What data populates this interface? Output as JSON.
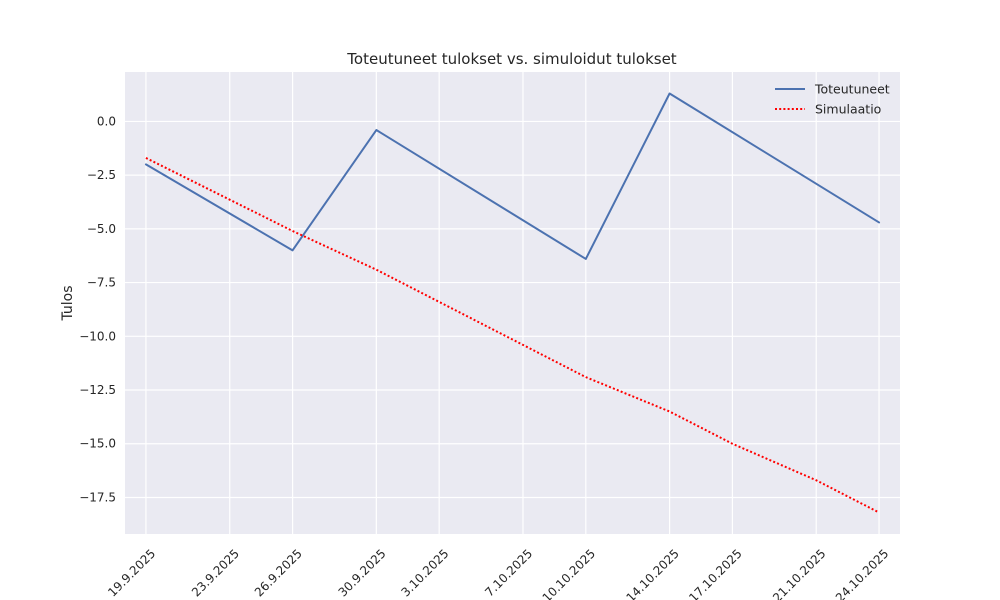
{
  "chart_data": {
    "type": "line",
    "title": "Toteutuneet tulokset vs. simuloidut tulokset",
    "xlabel": "",
    "ylabel": "Tulos",
    "x_ticks": [
      {
        "label": "19.9.2025",
        "date": "2025-09-19"
      },
      {
        "label": "23.9.2025",
        "date": "2025-09-23"
      },
      {
        "label": "26.9.2025",
        "date": "2025-09-26"
      },
      {
        "label": "30.9.2025",
        "date": "2025-09-30"
      },
      {
        "label": "3.10.2025",
        "date": "2025-10-03"
      },
      {
        "label": "7.10.2025",
        "date": "2025-10-07"
      },
      {
        "label": "10.10.2025",
        "date": "2025-10-10"
      },
      {
        "label": "14.10.2025",
        "date": "2025-10-14"
      },
      {
        "label": "17.10.2025",
        "date": "2025-10-17"
      },
      {
        "label": "21.10.2025",
        "date": "2025-10-21"
      },
      {
        "label": "24.10.2025",
        "date": "2025-10-24"
      }
    ],
    "y_ticks": [
      {
        "value": 0.0,
        "label": "0.0"
      },
      {
        "value": -2.5,
        "label": "−2.5"
      },
      {
        "value": -5.0,
        "label": "−5.0"
      },
      {
        "value": -7.5,
        "label": "−7.5"
      },
      {
        "value": -10.0,
        "label": "−10.0"
      },
      {
        "value": -12.5,
        "label": "−12.5"
      },
      {
        "value": -15.0,
        "label": "−15.0"
      },
      {
        "value": -17.5,
        "label": "−17.5"
      }
    ],
    "ylim": [
      -19.2,
      2.3
    ],
    "xlim": [
      "2025-09-18",
      "2025-10-25"
    ],
    "grid": true,
    "legend_position": "top-right",
    "series": [
      {
        "name": "Toteutuneet",
        "style": "solid",
        "color": "#4c72b0",
        "points": [
          {
            "x": "2025-09-19",
            "y": -2.0
          },
          {
            "x": "2025-09-26",
            "y": -6.0
          },
          {
            "x": "2025-09-30",
            "y": -0.4
          },
          {
            "x": "2025-10-10",
            "y": -6.4
          },
          {
            "x": "2025-10-14",
            "y": 1.3
          },
          {
            "x": "2025-10-24",
            "y": -4.7
          }
        ]
      },
      {
        "name": "Simulaatio",
        "style": "dotted",
        "color": "#ff0000",
        "points": [
          {
            "x": "2025-09-19",
            "y": -1.7
          },
          {
            "x": "2025-09-26",
            "y": -5.1
          },
          {
            "x": "2025-09-30",
            "y": -6.9
          },
          {
            "x": "2025-10-10",
            "y": -11.9
          },
          {
            "x": "2025-10-14",
            "y": -13.5
          },
          {
            "x": "2025-10-17",
            "y": -15.0
          },
          {
            "x": "2025-10-21",
            "y": -16.7
          },
          {
            "x": "2025-10-24",
            "y": -18.2
          }
        ]
      }
    ]
  }
}
